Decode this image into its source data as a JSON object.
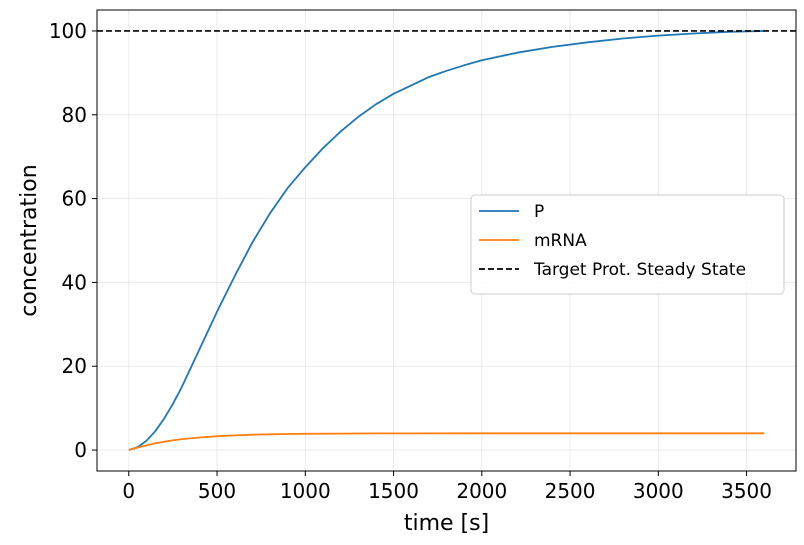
{
  "chart_data": {
    "type": "line",
    "title": "",
    "xlabel": "time [s]",
    "ylabel": "concentration",
    "xlim": [
      -180,
      3780
    ],
    "ylim": [
      -5,
      105
    ],
    "xticks": [
      0,
      500,
      1000,
      1500,
      2000,
      2500,
      3000,
      3500
    ],
    "yticks": [
      0,
      20,
      40,
      60,
      80,
      100
    ],
    "grid": true,
    "legend_position": "center-right",
    "series": [
      {
        "name": "P",
        "color": "#1f77b4",
        "x": [
          0,
          50,
          100,
          150,
          200,
          250,
          300,
          350,
          400,
          450,
          500,
          600,
          700,
          800,
          900,
          1000,
          1100,
          1200,
          1300,
          1400,
          1500,
          1600,
          1700,
          1800,
          1900,
          2000,
          2200,
          2400,
          2600,
          2800,
          3000,
          3200,
          3400,
          3600
        ],
        "y": [
          0,
          0.7,
          2.2,
          4.5,
          7.5,
          11.0,
          15.0,
          19.5,
          24.0,
          28.5,
          33.0,
          41.5,
          49.5,
          56.5,
          62.5,
          67.5,
          72.0,
          76.0,
          79.5,
          82.5,
          85.0,
          87.0,
          89.0,
          90.5,
          91.8,
          93.0,
          94.8,
          96.2,
          97.3,
          98.2,
          98.9,
          99.4,
          99.8,
          100.0
        ]
      },
      {
        "name": "mRNA",
        "color": "#ff7f0e",
        "x": [
          0,
          50,
          100,
          150,
          200,
          250,
          300,
          400,
          500,
          600,
          700,
          800,
          900,
          1000,
          1200,
          1400,
          1600,
          2000,
          2500,
          3000,
          3600
        ],
        "y": [
          0,
          0.6,
          1.1,
          1.6,
          2.0,
          2.3,
          2.6,
          3.0,
          3.3,
          3.5,
          3.65,
          3.75,
          3.82,
          3.87,
          3.93,
          3.96,
          3.98,
          4.0,
          4.0,
          4.0,
          4.0
        ]
      },
      {
        "name": "Target Prot. Steady State",
        "color": "#000000",
        "dashed": true,
        "hline": 100
      }
    ]
  }
}
